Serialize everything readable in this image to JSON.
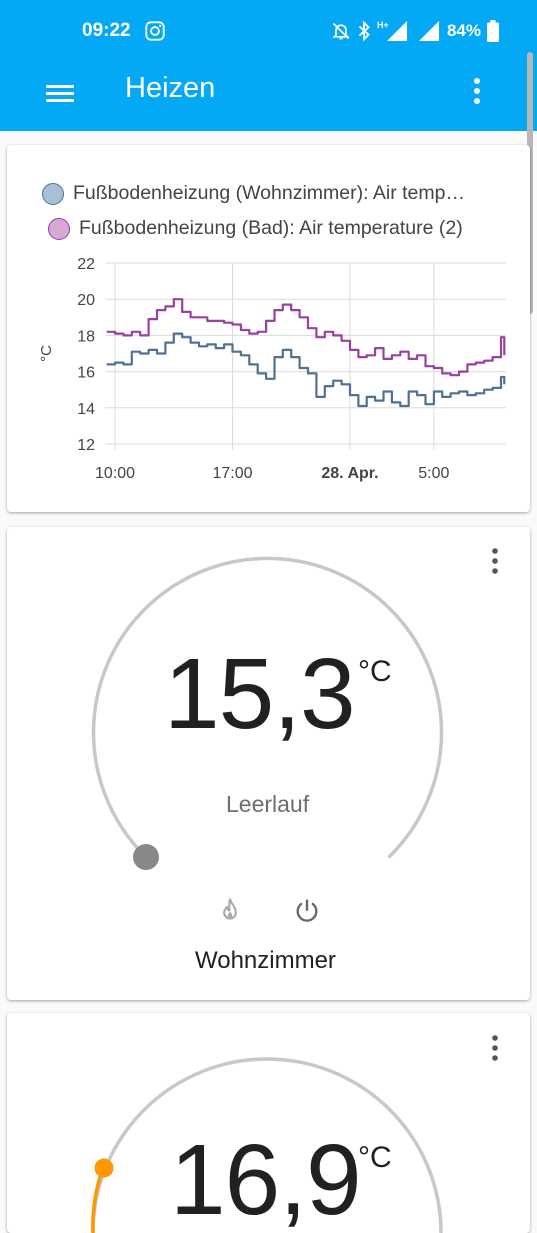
{
  "status_bar": {
    "time": "09:22",
    "battery_percent": "84%",
    "icons": [
      "instagram-icon",
      "mute-icon",
      "bluetooth-icon",
      "signal-icon",
      "signal-icon-2",
      "battery-icon"
    ]
  },
  "toolbar": {
    "title": "Heizen",
    "menu_icon": "hamburger-icon",
    "more_icon": "more-vertical-icon"
  },
  "colors": {
    "header_bg": "#03a9f4",
    "series_1": "#4e7194",
    "series_2": "#9b3fa0",
    "heat_accent": "#ff9800",
    "idle_dot": "#888888"
  },
  "history_card": {
    "legend": [
      {
        "label": "Fußbodenheizung (Wohnzimmer): Air temp…",
        "color": "#4e7194",
        "fill": "#a9bfd6"
      },
      {
        "label": "Fußbodenheizung (Bad): Air temperature (2)",
        "color": "#9b3fa0",
        "fill": "#d5a8d6"
      }
    ]
  },
  "chart_data": {
    "type": "line",
    "xlabel": "",
    "ylabel": "°C",
    "ylim": [
      12,
      22
    ],
    "yticks": [
      12,
      14,
      16,
      18,
      20,
      22
    ],
    "x_ticks": [
      "10:00",
      "17:00",
      "28. Apr.",
      "5:00"
    ],
    "x_range_hours": [
      9.4,
      33.3
    ],
    "x_tick_hours": [
      10,
      17,
      24,
      29
    ],
    "grid": true,
    "legend_position": "top",
    "series": [
      {
        "name": "Fußbodenheizung (Wohnzimmer): Air temp…",
        "x": [
          9.5,
          10.0,
          10.5,
          11.0,
          11.5,
          12.0,
          12.5,
          13.0,
          13.5,
          14.0,
          14.5,
          15.0,
          15.5,
          16.0,
          16.5,
          17.0,
          17.5,
          18.0,
          18.5,
          19.0,
          19.5,
          20.0,
          20.5,
          21.0,
          21.5,
          22.0,
          22.5,
          23.0,
          23.5,
          24.0,
          24.5,
          25.0,
          25.5,
          26.0,
          26.5,
          27.0,
          27.5,
          28.0,
          28.5,
          29.0,
          29.5,
          30.0,
          30.5,
          31.0,
          31.5,
          32.0,
          32.5,
          33.0,
          33.2
        ],
        "y": [
          16.4,
          16.5,
          16.4,
          17.1,
          17.0,
          17.2,
          17.0,
          17.6,
          18.1,
          17.9,
          17.6,
          17.4,
          17.5,
          17.3,
          17.5,
          17.1,
          16.9,
          16.4,
          15.9,
          15.6,
          16.8,
          17.2,
          16.8,
          16.2,
          15.9,
          14.6,
          15.2,
          15.5,
          15.3,
          14.7,
          14.1,
          14.6,
          14.4,
          14.9,
          14.3,
          14.1,
          14.9,
          14.7,
          14.2,
          14.9,
          14.6,
          14.8,
          14.9,
          14.7,
          14.8,
          15.0,
          15.1,
          15.7,
          15.3
        ]
      },
      {
        "name": "Fußbodenheizung (Bad): Air temperature (2)",
        "x": [
          9.5,
          10.0,
          10.5,
          11.0,
          11.5,
          12.0,
          12.5,
          13.0,
          13.5,
          14.0,
          14.5,
          15.0,
          15.5,
          16.0,
          16.5,
          17.0,
          17.5,
          18.0,
          18.5,
          19.0,
          19.5,
          20.0,
          20.5,
          21.0,
          21.5,
          22.0,
          22.5,
          23.0,
          23.5,
          24.0,
          24.5,
          25.0,
          25.5,
          26.0,
          26.5,
          27.0,
          27.5,
          28.0,
          28.5,
          29.0,
          29.5,
          30.0,
          30.5,
          31.0,
          31.5,
          32.0,
          32.5,
          33.0,
          33.2
        ],
        "y": [
          18.2,
          18.1,
          18.0,
          18.2,
          18.0,
          18.9,
          19.4,
          19.6,
          20.0,
          19.3,
          19.0,
          19.0,
          18.8,
          18.8,
          18.7,
          18.6,
          18.3,
          18.1,
          18.2,
          18.8,
          19.4,
          19.7,
          19.4,
          19.0,
          18.4,
          17.9,
          18.2,
          18.0,
          17.7,
          17.2,
          16.8,
          16.9,
          17.3,
          16.7,
          16.9,
          17.1,
          16.7,
          16.9,
          16.3,
          16.2,
          15.9,
          15.8,
          16.0,
          16.4,
          16.5,
          16.6,
          16.8,
          17.9,
          16.9
        ]
      }
    ]
  },
  "thermostat_1": {
    "current_temp": "15,3",
    "unit": "°C",
    "hvac_action": "Leerlauf",
    "name": "Wohnzimmer",
    "modes": [
      "flame-icon",
      "power-icon"
    ],
    "dot_color": "#888888"
  },
  "thermostat_2": {
    "current_temp": "16,9",
    "unit": "°C",
    "dot_color": "#ff9800"
  }
}
